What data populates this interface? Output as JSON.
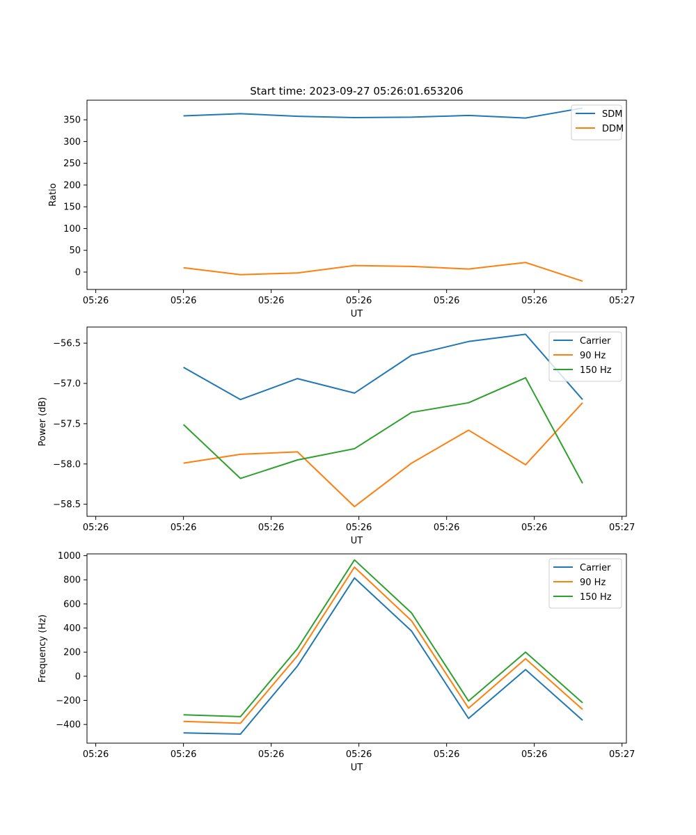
{
  "figure_title": "Start time: 2023-09-27 05:26:01.653206",
  "colors": {
    "blue": "#1f77b4",
    "orange": "#ff7f0e",
    "green": "#2ca02c"
  },
  "chart_data": [
    {
      "type": "line",
      "title": "Start time: 2023-09-27 05:26:01.653206",
      "xlabel": "UT",
      "ylabel": "Ratio",
      "xlim": [
        -0.6,
        5.55
      ],
      "ylim": [
        -40,
        395
      ],
      "x": [
        0.5,
        1.15,
        1.8,
        2.45,
        3.1,
        3.75,
        4.4,
        5.05
      ],
      "x_ticks": [
        -0.5,
        0.5,
        1.5,
        2.5,
        3.5,
        4.5,
        5.5
      ],
      "x_tick_labels": [
        "05:26",
        "05:26",
        "05:26",
        "05:26",
        "05:26",
        "05:26",
        "05:27"
      ],
      "y_ticks": [
        0,
        50,
        100,
        150,
        200,
        250,
        300,
        350
      ],
      "y_tick_labels": [
        "0",
        "50",
        "100",
        "150",
        "200",
        "250",
        "300",
        "350"
      ],
      "legend_position": "upper-right",
      "series": [
        {
          "name": "SDM",
          "color": "#1f77b4",
          "values": [
            359,
            364,
            358,
            355,
            356,
            360,
            354,
            377
          ]
        },
        {
          "name": "DDM",
          "color": "#ff7f0e",
          "values": [
            10,
            -6,
            -2,
            15,
            13,
            7,
            22,
            -21
          ]
        }
      ]
    },
    {
      "type": "line",
      "title": "",
      "xlabel": "UT",
      "ylabel": "Power (dB)",
      "xlim": [
        -0.6,
        5.55
      ],
      "ylim": [
        -58.65,
        -56.3
      ],
      "x": [
        0.5,
        1.15,
        1.8,
        2.45,
        3.1,
        3.75,
        4.4,
        5.05
      ],
      "x_ticks": [
        -0.5,
        0.5,
        1.5,
        2.5,
        3.5,
        4.5,
        5.5
      ],
      "x_tick_labels": [
        "05:26",
        "05:26",
        "05:26",
        "05:26",
        "05:26",
        "05:26",
        "05:27"
      ],
      "y_ticks": [
        -58.5,
        -58.0,
        -57.5,
        -57.0,
        -56.5
      ],
      "y_tick_labels": [
        "−58.5",
        "−58.0",
        "−57.5",
        "−57.0",
        "−56.5"
      ],
      "legend_position": "upper-right",
      "series": [
        {
          "name": "Carrier",
          "color": "#1f77b4",
          "values": [
            -56.8,
            -57.2,
            -56.94,
            -57.12,
            -56.65,
            -56.48,
            -56.39,
            -57.2
          ]
        },
        {
          "name": "90 Hz",
          "color": "#ff7f0e",
          "values": [
            -57.99,
            -57.88,
            -57.85,
            -58.53,
            -57.99,
            -57.58,
            -58.01,
            -57.24
          ]
        },
        {
          "name": "150 Hz",
          "color": "#2ca02c",
          "values": [
            -57.51,
            -58.18,
            -57.95,
            -57.81,
            -57.36,
            -57.24,
            -56.93,
            -58.24
          ]
        }
      ]
    },
    {
      "type": "line",
      "title": "",
      "xlabel": "UT",
      "ylabel": "Frequency (Hz)",
      "xlim": [
        -0.6,
        5.55
      ],
      "ylim": [
        -555,
        1015
      ],
      "x": [
        0.5,
        1.15,
        1.8,
        2.45,
        3.1,
        3.75,
        4.4,
        5.05
      ],
      "x_ticks": [
        -0.5,
        0.5,
        1.5,
        2.5,
        3.5,
        4.5,
        5.5
      ],
      "x_tick_labels": [
        "05:26",
        "05:26",
        "05:26",
        "05:26",
        "05:26",
        "05:26",
        "05:27"
      ],
      "y_ticks": [
        -400,
        -200,
        0,
        200,
        400,
        600,
        800,
        1000
      ],
      "y_tick_labels": [
        "−400",
        "−200",
        "0",
        "200",
        "400",
        "600",
        "800",
        "1000"
      ],
      "legend_position": "upper-right",
      "series": [
        {
          "name": "Carrier",
          "color": "#1f77b4",
          "values": [
            -470,
            -480,
            85,
            815,
            375,
            -350,
            55,
            -365
          ]
        },
        {
          "name": "90 Hz",
          "color": "#ff7f0e",
          "values": [
            -375,
            -390,
            170,
            905,
            460,
            -265,
            145,
            -275
          ]
        },
        {
          "name": "150 Hz",
          "color": "#2ca02c",
          "values": [
            -320,
            -335,
            230,
            965,
            525,
            -205,
            200,
            -220
          ]
        }
      ]
    }
  ]
}
